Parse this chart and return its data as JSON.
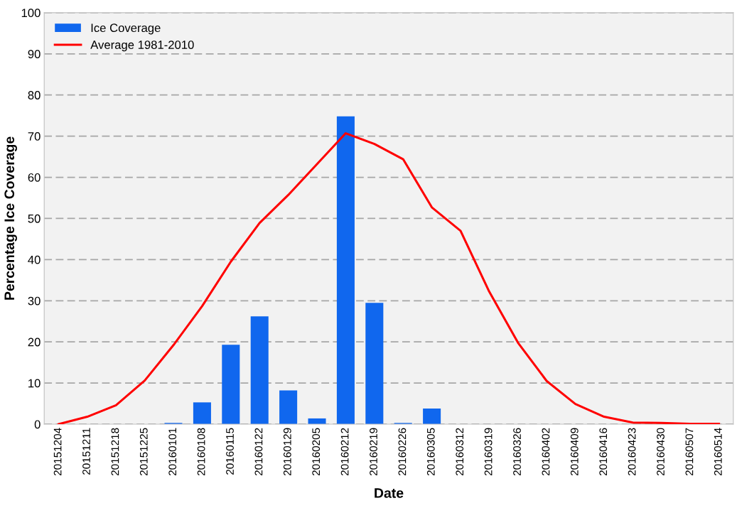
{
  "chart_data": {
    "type": "bar",
    "xlabel": "Date",
    "ylabel": "Percentage Ice Coverage",
    "categories": [
      "20151204",
      "20151211",
      "20151218",
      "20151225",
      "20160101",
      "20160108",
      "20160115",
      "20160122",
      "20160129",
      "20160205",
      "20160212",
      "20160219",
      "20160226",
      "20160305",
      "20160312",
      "20160319",
      "20160326",
      "20160402",
      "20160409",
      "20160416",
      "20160423",
      "20160430",
      "20160507",
      "20160514"
    ],
    "series": [
      {
        "name": "Ice Coverage",
        "color": "#1067ee",
        "values": [
          0,
          0,
          0,
          0,
          0.3,
          5.3,
          19.3,
          26.2,
          8.2,
          1.4,
          74.8,
          29.5,
          0.3,
          3.8,
          0,
          0,
          0,
          0,
          0,
          0,
          0,
          0,
          0,
          0
        ]
      },
      {
        "name": "Average 1981-2010",
        "type": "line",
        "color": "#ff0000",
        "values": [
          0,
          1.8,
          4.6,
          10.6,
          19.2,
          28.7,
          39.5,
          48.9,
          55.7,
          63.2,
          70.7,
          68.1,
          64.4,
          52.7,
          47.0,
          32.2,
          19.8,
          10.5,
          4.9,
          1.8,
          0.4,
          0.3,
          0.1,
          0.1
        ]
      }
    ],
    "ylim": [
      0,
      100
    ],
    "yticks": [
      0,
      10,
      20,
      30,
      40,
      50,
      60,
      70,
      80,
      90,
      100
    ],
    "grid": "y",
    "legend": "top left",
    "marker": "none",
    "line_style": "solid"
  }
}
